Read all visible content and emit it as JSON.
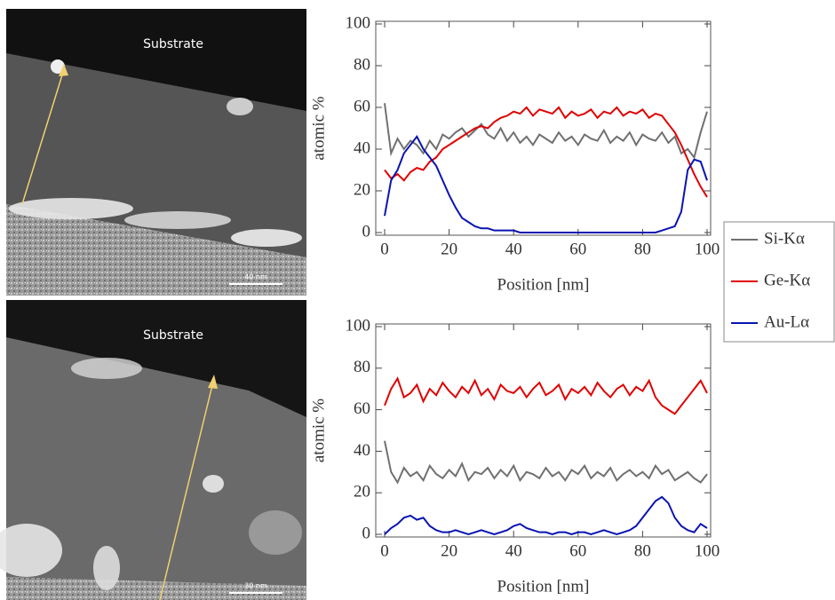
{
  "images": [
    {
      "label": "Substrate",
      "scale_bar": "40 nm"
    },
    {
      "label": "Substrate",
      "scale_bar": "30 nm"
    }
  ],
  "chart_data": [
    {
      "type": "line",
      "x_label": "Position [nm]",
      "y_label": "atomic %",
      "x": [
        0,
        2,
        4,
        6,
        8,
        10,
        12,
        14,
        16,
        18,
        20,
        22,
        24,
        26,
        28,
        30,
        32,
        34,
        36,
        38,
        40,
        42,
        44,
        46,
        48,
        50,
        52,
        54,
        56,
        58,
        60,
        62,
        64,
        66,
        68,
        70,
        72,
        74,
        76,
        78,
        80,
        82,
        84,
        86,
        88,
        90,
        92,
        94,
        96,
        98,
        100
      ],
      "xlim": [
        0,
        100
      ],
      "xticks": [
        0,
        20,
        40,
        60,
        80,
        100
      ],
      "ylim": [
        0,
        100
      ],
      "yticks": [
        0,
        20,
        40,
        60,
        80,
        100
      ],
      "legend": "outside-right",
      "series": [
        {
          "name": "Si-Kα",
          "color": "#707070",
          "values": [
            62,
            38,
            45,
            40,
            44,
            42,
            38,
            44,
            40,
            47,
            45,
            48,
            50,
            46,
            49,
            52,
            47,
            45,
            50,
            44,
            48,
            43,
            46,
            42,
            47,
            45,
            43,
            48,
            44,
            46,
            42,
            47,
            45,
            44,
            49,
            43,
            46,
            44,
            48,
            42,
            47,
            45,
            44,
            48,
            43,
            46,
            38,
            40,
            36,
            48,
            58
          ]
        },
        {
          "name": "Ge-Kα",
          "color": "#e00000",
          "values": [
            30,
            26,
            28,
            25,
            29,
            31,
            30,
            34,
            36,
            40,
            42,
            44,
            46,
            48,
            50,
            51,
            50,
            53,
            55,
            56,
            58,
            57,
            60,
            56,
            59,
            58,
            57,
            60,
            55,
            58,
            56,
            57,
            59,
            55,
            58,
            57,
            60,
            56,
            58,
            57,
            59,
            55,
            57,
            56,
            52,
            48,
            42,
            35,
            28,
            22,
            17
          ]
        },
        {
          "name": "Au-Lα",
          "color": "#0a14b0",
          "values": [
            8,
            25,
            30,
            38,
            42,
            46,
            40,
            36,
            32,
            25,
            18,
            12,
            7,
            5,
            3,
            2,
            2,
            1,
            1,
            1,
            1,
            0,
            0,
            0,
            0,
            0,
            0,
            0,
            0,
            0,
            0,
            0,
            0,
            0,
            0,
            0,
            0,
            0,
            0,
            0,
            0,
            0,
            0,
            1,
            2,
            3,
            10,
            30,
            35,
            34,
            25
          ]
        }
      ]
    },
    {
      "type": "line",
      "x_label": "Position [nm]",
      "y_label": "atomic %",
      "x": [
        0,
        2,
        4,
        6,
        8,
        10,
        12,
        14,
        16,
        18,
        20,
        22,
        24,
        26,
        28,
        30,
        32,
        34,
        36,
        38,
        40,
        42,
        44,
        46,
        48,
        50,
        52,
        54,
        56,
        58,
        60,
        62,
        64,
        66,
        68,
        70,
        72,
        74,
        76,
        78,
        80,
        82,
        84,
        86,
        88,
        90,
        92,
        94,
        96,
        98,
        100
      ],
      "xlim": [
        0,
        100
      ],
      "xticks": [
        0,
        20,
        40,
        60,
        80,
        100
      ],
      "ylim": [
        0,
        100
      ],
      "yticks": [
        0,
        20,
        40,
        60,
        80,
        100
      ],
      "series": [
        {
          "color": "#707070",
          "values": [
            45,
            30,
            25,
            32,
            28,
            30,
            26,
            33,
            29,
            27,
            31,
            28,
            34,
            26,
            30,
            29,
            32,
            27,
            31,
            28,
            33,
            26,
            30,
            29,
            27,
            32,
            28,
            30,
            26,
            31,
            29,
            33,
            27,
            30,
            28,
            32,
            26,
            29,
            31,
            28,
            30,
            27,
            33,
            29,
            31,
            26,
            28,
            30,
            27,
            25,
            29
          ]
        },
        {
          "color": "#e00000",
          "values": [
            62,
            70,
            75,
            66,
            68,
            72,
            64,
            70,
            67,
            73,
            69,
            66,
            71,
            68,
            74,
            67,
            70,
            65,
            72,
            69,
            68,
            71,
            66,
            70,
            73,
            67,
            69,
            72,
            65,
            70,
            68,
            71,
            67,
            73,
            69,
            66,
            70,
            72,
            67,
            71,
            69,
            74,
            66,
            62,
            60,
            58,
            62,
            66,
            70,
            74,
            68
          ]
        },
        {
          "color": "#0a14b0",
          "values": [
            0,
            3,
            5,
            8,
            9,
            7,
            8,
            4,
            2,
            1,
            1,
            2,
            1,
            0,
            1,
            2,
            1,
            0,
            1,
            2,
            4,
            5,
            3,
            2,
            1,
            1,
            0,
            1,
            1,
            0,
            1,
            1,
            0,
            1,
            2,
            1,
            0,
            1,
            2,
            4,
            8,
            12,
            16,
            18,
            15,
            8,
            4,
            2,
            1,
            5,
            3
          ]
        }
      ]
    }
  ]
}
